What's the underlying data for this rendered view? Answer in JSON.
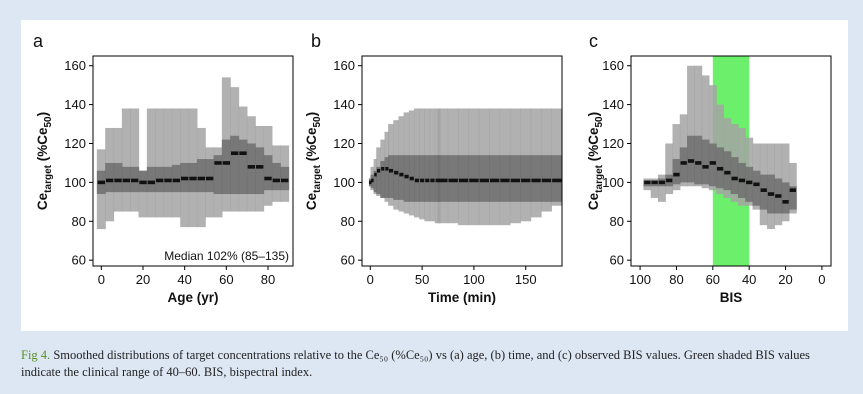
{
  "caption": {
    "label": "Fig 4.",
    "text": " Smoothed distributions of target concentrations relative to the Ce₅₀ (%Ce₅₀) vs (a) age, (b) time, and (c) observed BIS values. Green shaded BIS values indicate the clinical range of 40–60. BIS, bispectral index."
  },
  "colors": {
    "outer_band": "#a3a3a3",
    "inner_band": "#6e6e6e",
    "median": "#111111",
    "clinical_range": "#6cf06c"
  },
  "chart_data": [
    {
      "type": "area",
      "panel_label": "a",
      "xlabel": "Age (yr)",
      "ylabel_main": "Ce",
      "ylabel_sub": "target",
      "ylabel_rest": " (%Ce",
      "ylabel_sub2": "50",
      "ylabel_end": ")",
      "xlim": [
        -4,
        92
      ],
      "ylim": [
        57,
        165
      ],
      "xticks": [
        0,
        20,
        40,
        60,
        80
      ],
      "yticks": [
        60,
        80,
        100,
        120,
        140,
        160
      ],
      "annotation": "Median 102% (85–135)",
      "x": [
        0,
        4,
        8,
        12,
        16,
        20,
        24,
        28,
        32,
        36,
        40,
        44,
        48,
        52,
        56,
        60,
        64,
        68,
        72,
        76,
        80,
        84,
        88
      ],
      "p_high": [
        117,
        128,
        128,
        138,
        138,
        106,
        138,
        138,
        138,
        138,
        138,
        138,
        128,
        118,
        118,
        154,
        149,
        139,
        134,
        129,
        129,
        119,
        119
      ],
      "q_high": [
        106,
        110,
        110,
        108,
        108,
        106,
        108,
        108,
        108,
        109,
        110,
        110,
        112,
        112,
        114,
        122,
        124,
        122,
        120,
        118,
        114,
        110,
        108
      ],
      "median": [
        100,
        101,
        101,
        101,
        101,
        100,
        100,
        101,
        101,
        101,
        102,
        102,
        102,
        102,
        110,
        110,
        115,
        115,
        108,
        108,
        102,
        101,
        101
      ],
      "q_low": [
        94,
        95,
        95,
        95,
        95,
        95,
        95,
        95,
        95,
        95,
        95,
        95,
        95,
        95,
        94,
        94,
        94,
        94,
        94,
        94,
        96,
        96,
        96
      ],
      "p_low": [
        76,
        80,
        85,
        85,
        85,
        82,
        82,
        82,
        82,
        82,
        77,
        77,
        77,
        82,
        82,
        85,
        85,
        85,
        85,
        85,
        88,
        90,
        90
      ]
    },
    {
      "type": "area",
      "panel_label": "b",
      "xlabel": "Time (min)",
      "ylabel_main": "Ce",
      "ylabel_sub": "target",
      "ylabel_rest": " (%Ce",
      "ylabel_sub2": "50",
      "ylabel_end": ")",
      "xlim": [
        -8,
        185
      ],
      "ylim": [
        57,
        165
      ],
      "xticks": [
        0,
        50,
        100,
        150
      ],
      "yticks": [
        60,
        80,
        100,
        120,
        140,
        160
      ],
      "x": [
        0,
        2,
        5,
        8,
        12,
        16,
        20,
        25,
        30,
        35,
        40,
        45,
        50,
        55,
        60,
        65,
        70,
        80,
        90,
        100,
        110,
        120,
        130,
        140,
        150,
        160,
        170,
        180
      ],
      "p_high": [
        102,
        108,
        112,
        118,
        122,
        126,
        130,
        132,
        134,
        136,
        137,
        138,
        138,
        138,
        138,
        138,
        138,
        138,
        138,
        138,
        138,
        138,
        138,
        138,
        138,
        138,
        138,
        138
      ],
      "q_high": [
        102,
        104,
        106,
        108,
        111,
        113,
        114,
        114,
        114,
        114,
        114,
        114,
        114,
        114,
        114,
        114,
        114,
        114,
        114,
        114,
        114,
        114,
        114,
        114,
        114,
        114,
        114,
        114
      ],
      "median": [
        100,
        101,
        104,
        106,
        107,
        107,
        106,
        105,
        104,
        103,
        102,
        101,
        101,
        101,
        101,
        101,
        101,
        101,
        101,
        101,
        101,
        101,
        101,
        101,
        101,
        101,
        101,
        101
      ],
      "q_low": [
        98,
        97,
        95,
        94,
        92,
        92,
        92,
        91,
        91,
        90,
        90,
        90,
        90,
        90,
        90,
        90,
        90,
        90,
        90,
        90,
        90,
        90,
        90,
        90,
        90,
        90,
        90,
        90
      ],
      "p_low": [
        98,
        96,
        94,
        93,
        92,
        90,
        88,
        86,
        85,
        84,
        83,
        82,
        81,
        80,
        80,
        79,
        79,
        79,
        78,
        78,
        78,
        78,
        78,
        79,
        80,
        82,
        85,
        88
      ]
    },
    {
      "type": "area",
      "panel_label": "c",
      "xlabel": "BIS",
      "ylabel_main": "Ce",
      "ylabel_sub": "target",
      "ylabel_rest": " (%Ce",
      "ylabel_sub2": "50",
      "ylabel_end": ")",
      "xlim": [
        105,
        -5
      ],
      "ylim": [
        57,
        165
      ],
      "xticks": [
        100,
        80,
        60,
        40,
        20,
        0
      ],
      "yticks": [
        60,
        80,
        100,
        120,
        140,
        160
      ],
      "clinical_range": [
        60,
        40
      ],
      "x": [
        96,
        92,
        88,
        84,
        80,
        76,
        72,
        68,
        64,
        60,
        56,
        52,
        48,
        44,
        40,
        36,
        32,
        28,
        24,
        20,
        16
      ],
      "p_high": [
        102,
        102,
        104,
        120,
        130,
        135,
        160,
        160,
        155,
        150,
        140,
        133,
        130,
        128,
        123,
        120,
        120,
        120,
        120,
        120,
        110
      ],
      "q_high": [
        101,
        101,
        102,
        104,
        112,
        118,
        124,
        124,
        122,
        120,
        118,
        116,
        113,
        110,
        108,
        106,
        104,
        104,
        102,
        100,
        98
      ],
      "median": [
        100,
        100,
        100,
        101,
        104,
        110,
        111,
        110,
        108,
        110,
        107,
        105,
        102,
        101,
        100,
        99,
        96,
        94,
        93,
        90,
        96
      ],
      "q_low": [
        98,
        98,
        98,
        98,
        99,
        100,
        100,
        99,
        99,
        98,
        97,
        96,
        94,
        92,
        90,
        88,
        86,
        84,
        84,
        84,
        86
      ],
      "p_low": [
        96,
        92,
        90,
        94,
        96,
        98,
        98,
        98,
        97,
        96,
        94,
        92,
        90,
        88,
        88,
        86,
        78,
        76,
        78,
        80,
        84
      ]
    }
  ]
}
